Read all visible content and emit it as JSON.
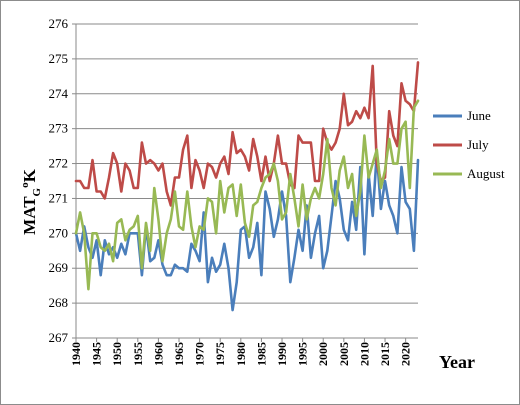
{
  "chart_data": {
    "type": "line",
    "xlabel": "Year",
    "ylabel_main": "MAT",
    "ylabel_sub": "G",
    "ylabel_sup": "o",
    "ylabel_tail": "K",
    "xlim": [
      1940,
      2023
    ],
    "ylim": [
      267,
      276
    ],
    "yticks": [
      267,
      268,
      269,
      270,
      271,
      272,
      273,
      274,
      275,
      276
    ],
    "xticks": [
      1940,
      1945,
      1950,
      1955,
      1960,
      1965,
      1970,
      1975,
      1980,
      1985,
      1990,
      1995,
      2000,
      2005,
      2010,
      2015,
      2020
    ],
    "grid": true,
    "legend_position": "right",
    "x": [
      1940,
      1941,
      1942,
      1943,
      1944,
      1945,
      1946,
      1947,
      1948,
      1949,
      1950,
      1951,
      1952,
      1953,
      1954,
      1955,
      1956,
      1957,
      1958,
      1959,
      1960,
      1961,
      1962,
      1963,
      1964,
      1965,
      1966,
      1967,
      1968,
      1969,
      1970,
      1971,
      1972,
      1973,
      1974,
      1975,
      1976,
      1977,
      1978,
      1979,
      1980,
      1981,
      1982,
      1983,
      1984,
      1985,
      1986,
      1987,
      1988,
      1989,
      1990,
      1991,
      1992,
      1993,
      1994,
      1995,
      1996,
      1997,
      1998,
      1999,
      2000,
      2001,
      2002,
      2003,
      2004,
      2005,
      2006,
      2007,
      2008,
      2009,
      2010,
      2011,
      2012,
      2013,
      2014,
      2015,
      2016,
      2017,
      2018,
      2019,
      2020,
      2021,
      2022,
      2023
    ],
    "series": [
      {
        "name": "June",
        "color": "#4a7ebb",
        "values": [
          270.0,
          269.5,
          270.2,
          269.6,
          269.3,
          269.8,
          268.8,
          269.8,
          269.4,
          269.6,
          269.3,
          269.7,
          269.4,
          270.0,
          270.0,
          270.0,
          268.8,
          270.2,
          269.2,
          269.3,
          269.8,
          269.1,
          268.8,
          268.8,
          269.1,
          269.0,
          269.0,
          268.9,
          269.7,
          269.5,
          269.2,
          270.6,
          268.6,
          269.3,
          268.9,
          269.1,
          269.7,
          269.0,
          267.8,
          268.6,
          270.1,
          270.2,
          269.3,
          269.6,
          270.3,
          268.8,
          271.2,
          270.7,
          269.9,
          270.4,
          271.2,
          270.5,
          268.6,
          269.3,
          270.1,
          269.5,
          270.8,
          269.3,
          270.0,
          270.5,
          269.0,
          269.5,
          270.5,
          271.5,
          271.0,
          270.1,
          269.8,
          270.9,
          270.1,
          271.9,
          269.4,
          271.7,
          270.5,
          272.3,
          270.7,
          271.5,
          270.8,
          270.5,
          270.0,
          271.9,
          270.9,
          270.7,
          269.5,
          272.1
        ]
      },
      {
        "name": "July",
        "color": "#be4b48",
        "values": [
          271.5,
          271.5,
          271.3,
          271.3,
          272.1,
          271.2,
          271.2,
          271.0,
          271.6,
          272.3,
          272.0,
          271.2,
          272.0,
          271.8,
          271.3,
          271.3,
          272.6,
          272.0,
          272.1,
          272.0,
          271.8,
          272.0,
          271.2,
          270.8,
          271.6,
          271.6,
          272.4,
          272.8,
          271.3,
          272.1,
          271.8,
          271.3,
          272.0,
          271.9,
          271.6,
          272.0,
          272.2,
          271.7,
          272.9,
          272.3,
          272.4,
          272.2,
          271.8,
          272.7,
          272.2,
          271.5,
          272.2,
          271.5,
          272.0,
          272.8,
          272.0,
          272.0,
          271.4,
          271.3,
          272.8,
          272.6,
          272.6,
          272.6,
          271.5,
          271.5,
          273.0,
          272.6,
          272.4,
          272.6,
          273.0,
          274.0,
          273.1,
          273.2,
          273.5,
          273.3,
          273.6,
          273.3,
          274.8,
          272.0,
          271.5,
          271.6,
          273.5,
          272.8,
          272.5,
          274.3,
          273.8,
          273.7,
          273.5,
          274.9
        ]
      },
      {
        "name": "August",
        "color": "#98b954",
        "values": [
          270.0,
          270.6,
          270.0,
          268.4,
          270.0,
          270.0,
          269.6,
          269.5,
          269.7,
          269.2,
          270.3,
          270.4,
          269.8,
          270.1,
          270.2,
          270.5,
          269.0,
          270.3,
          269.5,
          271.3,
          270.4,
          269.2,
          270.0,
          270.4,
          271.2,
          270.2,
          270.1,
          271.2,
          270.2,
          269.6,
          270.2,
          270.1,
          271.0,
          270.9,
          270.0,
          271.5,
          270.6,
          271.3,
          271.4,
          270.5,
          271.4,
          270.3,
          269.9,
          270.8,
          270.9,
          271.3,
          271.6,
          271.7,
          272.0,
          271.5,
          270.4,
          270.6,
          271.7,
          271.0,
          270.2,
          271.4,
          270.4,
          271.0,
          271.3,
          271.0,
          271.7,
          272.7,
          271.3,
          270.8,
          271.8,
          272.2,
          271.3,
          271.7,
          270.5,
          271.2,
          272.8,
          271.6,
          272.0,
          272.4,
          271.3,
          271.8,
          272.7,
          272.0,
          272.0,
          273.0,
          273.2,
          271.3,
          273.6,
          273.8
        ]
      }
    ]
  }
}
